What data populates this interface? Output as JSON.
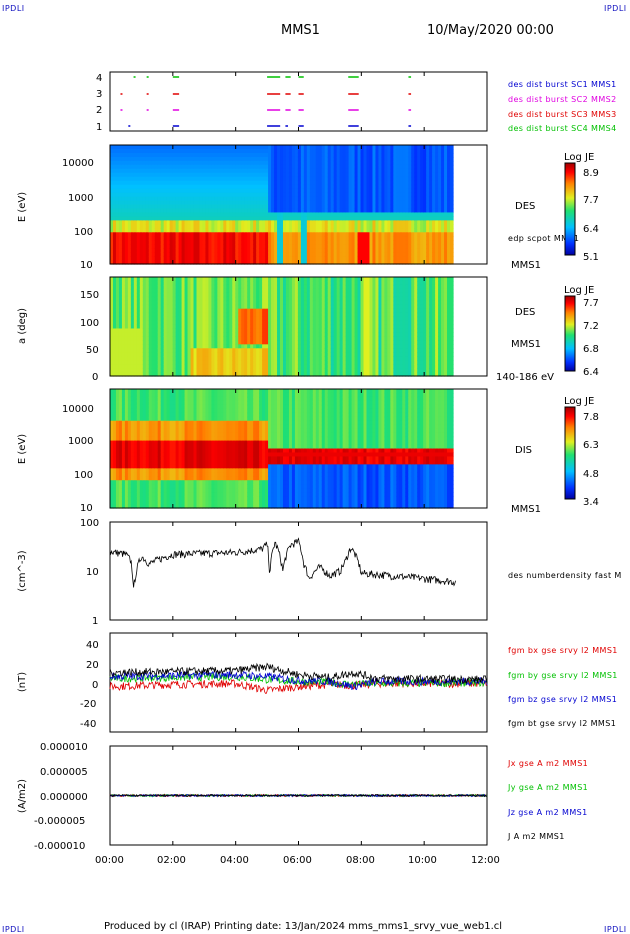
{
  "header": {
    "spacecraft": "MMS1",
    "date_time": "10/May/2020 00:00",
    "corner_mark": "IPDLI"
  },
  "footer": {
    "text": "Produced by cl (IRAP)   Printing date: 13/Jan/2024   mms_mms1_srvy_vue_web1.cl"
  },
  "colors": {
    "red": "#e00000",
    "green": "#00c000",
    "blue": "#0000d0",
    "magenta": "#e000e0",
    "black": "#000000"
  },
  "chart_data": [
    {
      "type": "scatter",
      "id": "burst",
      "yticks": [
        "4",
        "3",
        "2",
        "1"
      ],
      "series": [
        {
          "name": "des dist burst SC1 MMS1",
          "y": 1,
          "color": "#0000d0",
          "intervals": [
            [
              "00:35",
              "00:38"
            ],
            [
              "02:00",
              "02:12"
            ],
            [
              "05:00",
              "05:25"
            ],
            [
              "05:35",
              "05:40"
            ],
            [
              "06:00",
              "06:10"
            ],
            [
              "07:35",
              "07:55"
            ],
            [
              "09:30",
              "09:35"
            ]
          ]
        },
        {
          "name": "des dist burst SC2 MMS2",
          "y": 2,
          "color": "#e000e0",
          "intervals": [
            [
              "00:20",
              "00:23"
            ],
            [
              "01:10",
              "01:13"
            ],
            [
              "02:00",
              "02:12"
            ],
            [
              "05:00",
              "05:25"
            ],
            [
              "05:35",
              "05:45"
            ],
            [
              "06:00",
              "06:10"
            ],
            [
              "07:35",
              "07:55"
            ],
            [
              "09:30",
              "09:35"
            ]
          ]
        },
        {
          "name": "des dist burst SC3 MMS3",
          "y": 3,
          "color": "#e00000",
          "intervals": [
            [
              "00:20",
              "00:23"
            ],
            [
              "01:10",
              "01:13"
            ],
            [
              "02:00",
              "02:12"
            ],
            [
              "05:00",
              "05:25"
            ],
            [
              "05:35",
              "05:45"
            ],
            [
              "06:00",
              "06:10"
            ],
            [
              "07:35",
              "07:55"
            ],
            [
              "09:30",
              "09:35"
            ]
          ]
        },
        {
          "name": "des dist burst SC4 MMS4",
          "y": 4,
          "color": "#00c000",
          "intervals": [
            [
              "00:45",
              "00:48"
            ],
            [
              "01:10",
              "01:13"
            ],
            [
              "02:00",
              "02:12"
            ],
            [
              "05:00",
              "05:25"
            ],
            [
              "05:35",
              "05:45"
            ],
            [
              "06:00",
              "06:10"
            ],
            [
              "07:35",
              "07:55"
            ],
            [
              "09:30",
              "09:35"
            ]
          ]
        }
      ]
    },
    {
      "type": "heatmap",
      "id": "des_energy",
      "ylabel": "E (eV)",
      "yticks": [
        "10000",
        "1000",
        "100",
        "10"
      ],
      "side_labels": [
        "DES",
        "edp scpot MMS1"
      ],
      "bottom_label": "MMS1",
      "colorbar": {
        "title": "Log JE",
        "ticks": [
          "8.9",
          "7.7",
          "6.4",
          "5.1"
        ]
      }
    },
    {
      "type": "heatmap",
      "id": "des_pitch",
      "ylabel": "a (deg)",
      "yticks": [
        "150",
        "100",
        "50",
        "0"
      ],
      "side_labels": [
        "DES",
        "MMS1"
      ],
      "bottom_label": "140-186 eV",
      "colorbar": {
        "title": "Log JE",
        "ticks": [
          "7.7",
          "7.2",
          "6.8",
          "6.4"
        ]
      }
    },
    {
      "type": "heatmap",
      "id": "dis_energy",
      "ylabel": "E (eV)",
      "yticks": [
        "10000",
        "1000",
        "100",
        "10"
      ],
      "side_labels": [
        "DIS"
      ],
      "bottom_label": "MMS1",
      "colorbar": {
        "title": "Log JE",
        "ticks": [
          "7.8",
          "6.3",
          "4.8",
          "3.4"
        ]
      }
    },
    {
      "type": "line",
      "id": "density",
      "ylabel": "(cm^-3)",
      "yticks": [
        "100",
        "10",
        "1"
      ],
      "ylim": [
        1,
        100
      ],
      "series": [
        {
          "name": "des numberdensity fast M",
          "color": "#000000",
          "x": [
            "00:00",
            "00:30",
            "00:40",
            "00:45",
            "01:00",
            "01:15",
            "02:00",
            "04:00",
            "04:50",
            "05:00",
            "05:05",
            "05:15",
            "05:30",
            "05:45",
            "06:00",
            "06:10",
            "06:20",
            "06:40",
            "07:00",
            "07:20",
            "07:30",
            "07:40",
            "08:00",
            "09:00",
            "10:00",
            "11:00"
          ],
          "y": [
            25,
            22,
            16,
            4,
            20,
            14,
            22,
            24,
            28,
            35,
            8,
            38,
            10,
            34,
            40,
            14,
            7,
            12,
            8,
            10,
            16,
            30,
            9,
            8,
            7,
            6
          ]
        }
      ]
    },
    {
      "type": "line",
      "id": "fgm",
      "ylabel": "(nT)",
      "yticks": [
        "40",
        "20",
        "0",
        "-20",
        "-40"
      ],
      "ylim": [
        -50,
        50
      ],
      "series": [
        {
          "name": "fgm bx gse srvy l2 MMS1",
          "color": "#e00000",
          "x": [
            "00:00",
            "02:00",
            "04:00",
            "05:00",
            "06:00",
            "07:00",
            "07:45",
            "08:30",
            "12:00"
          ],
          "y": [
            -4,
            -2,
            -1,
            -8,
            -4,
            -2,
            -3,
            -1,
            -1
          ]
        },
        {
          "name": "fgm by gse srvy l2 MMS1",
          "color": "#00c000",
          "x": [
            "00:00",
            "02:00",
            "04:00",
            "05:00",
            "06:00",
            "07:00",
            "07:45",
            "08:30",
            "12:00"
          ],
          "y": [
            4,
            5,
            6,
            3,
            1,
            0,
            -2,
            -1,
            0
          ]
        },
        {
          "name": "fgm bz gse srvy l2 MMS1",
          "color": "#0000d0",
          "x": [
            "00:00",
            "02:00",
            "04:00",
            "05:00",
            "06:00",
            "07:00",
            "07:45",
            "08:30",
            "12:00"
          ],
          "y": [
            6,
            7,
            8,
            6,
            2,
            1,
            -4,
            1,
            1
          ]
        },
        {
          "name": "fgm bt gse srvy l2 MMS1",
          "color": "#000000",
          "x": [
            "00:00",
            "02:00",
            "04:00",
            "05:00",
            "06:00",
            "07:00",
            "07:45",
            "08:30",
            "12:00"
          ],
          "y": [
            10,
            11,
            12,
            16,
            8,
            5,
            10,
            4,
            3
          ]
        }
      ]
    },
    {
      "type": "line",
      "id": "current",
      "ylabel": "(A/m2)",
      "yticks": [
        "0.000010",
        "0.000005",
        "0.000000",
        "-0.000005",
        "-0.000010"
      ],
      "ylim": [
        -1e-05,
        1e-05
      ],
      "xticks": [
        "00:00",
        "02:00",
        "04:00",
        "06:00",
        "08:00",
        "10:00",
        "12:00"
      ],
      "series": [
        {
          "name": "Jx gse A m2 MMS1",
          "color": "#e00000",
          "x": [
            "00:00",
            "12:00"
          ],
          "y": [
            0,
            0
          ]
        },
        {
          "name": "Jy gse A m2 MMS1",
          "color": "#00c000",
          "x": [
            "00:00",
            "12:00"
          ],
          "y": [
            0,
            0
          ]
        },
        {
          "name": "Jz gse A m2 MMS1",
          "color": "#0000d0",
          "x": [
            "00:00",
            "12:00"
          ],
          "y": [
            0,
            0
          ]
        },
        {
          "name": "J A m2 MMS1",
          "color": "#000000",
          "x": [
            "00:00",
            "12:00"
          ],
          "y": [
            0,
            0
          ]
        }
      ]
    }
  ]
}
